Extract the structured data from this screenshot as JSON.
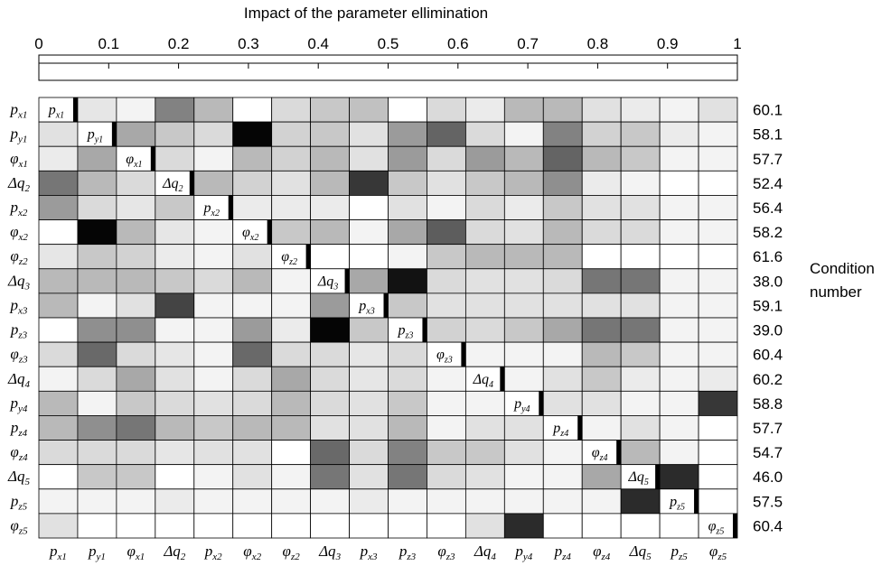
{
  "chart_data": {
    "type": "heatmap",
    "title": "Impact of the parameter ellimination",
    "scale_ticks": [
      "0",
      "0.1",
      "0.2",
      "0.3",
      "0.4",
      "0.5",
      "0.6",
      "0.7",
      "0.8",
      "0.9",
      "1"
    ],
    "scale_range": [
      0,
      1
    ],
    "labels": [
      {
        "sym": "p",
        "sub": "x1"
      },
      {
        "sym": "p",
        "sub": "y1"
      },
      {
        "sym": "φ",
        "sub": "x1"
      },
      {
        "sym": "Δq",
        "sub": "2"
      },
      {
        "sym": "p",
        "sub": "x2"
      },
      {
        "sym": "φ",
        "sub": "x2"
      },
      {
        "sym": "φ",
        "sub": "z2"
      },
      {
        "sym": "Δq",
        "sub": "3"
      },
      {
        "sym": "p",
        "sub": "x3"
      },
      {
        "sym": "p",
        "sub": "z3"
      },
      {
        "sym": "φ",
        "sub": "z3"
      },
      {
        "sym": "Δq",
        "sub": "4"
      },
      {
        "sym": "p",
        "sub": "y4"
      },
      {
        "sym": "p",
        "sub": "z4"
      },
      {
        "sym": "φ",
        "sub": "z4"
      },
      {
        "sym": "Δq",
        "sub": "5"
      },
      {
        "sym": "p",
        "sub": "z5"
      },
      {
        "sym": "φ",
        "sub": "z5"
      }
    ],
    "condition_label": [
      "Condition",
      "number"
    ],
    "condition_numbers": [
      "60.1",
      "58.1",
      "57.7",
      "52.4",
      "56.4",
      "58.2",
      "61.6",
      "38.0",
      "59.1",
      "39.0",
      "60.4",
      "60.2",
      "58.8",
      "57.7",
      "54.7",
      "46.0",
      "57.5",
      "60.4"
    ],
    "values": [
      [
        1.0,
        0.1,
        0.05,
        0.5,
        0.28,
        0.0,
        0.15,
        0.22,
        0.25,
        0.0,
        0.15,
        0.08,
        0.28,
        0.28,
        0.12,
        0.08,
        0.05,
        0.12
      ],
      [
        0.12,
        1.0,
        0.35,
        0.22,
        0.15,
        1.0,
        0.18,
        0.22,
        0.12,
        0.4,
        0.62,
        0.15,
        0.05,
        0.5,
        0.18,
        0.22,
        0.08,
        0.05
      ],
      [
        0.08,
        0.35,
        1.0,
        0.15,
        0.05,
        0.28,
        0.18,
        0.28,
        0.12,
        0.4,
        0.15,
        0.4,
        0.28,
        0.62,
        0.28,
        0.22,
        0.05,
        0.05
      ],
      [
        0.55,
        0.28,
        0.15,
        1.0,
        0.28,
        0.18,
        0.12,
        0.28,
        0.8,
        0.22,
        0.12,
        0.22,
        0.28,
        0.45,
        0.08,
        0.05,
        0.0,
        0.0
      ],
      [
        0.4,
        0.15,
        0.1,
        0.22,
        1.0,
        0.08,
        0.08,
        0.08,
        0.0,
        0.12,
        0.05,
        0.15,
        0.08,
        0.22,
        0.12,
        0.12,
        0.05,
        0.05
      ],
      [
        0.0,
        1.0,
        0.28,
        0.1,
        0.05,
        1.0,
        0.22,
        0.28,
        0.05,
        0.35,
        0.65,
        0.15,
        0.12,
        0.28,
        0.15,
        0.15,
        0.05,
        0.05
      ],
      [
        0.1,
        0.22,
        0.18,
        0.08,
        0.05,
        0.12,
        1.0,
        0.0,
        0.0,
        0.05,
        0.22,
        0.28,
        0.28,
        0.28,
        0.0,
        0.0,
        0.0,
        0.0
      ],
      [
        0.28,
        0.28,
        0.28,
        0.22,
        0.15,
        0.28,
        0.05,
        1.0,
        0.35,
        0.95,
        0.15,
        0.12,
        0.12,
        0.15,
        0.55,
        0.55,
        0.05,
        0.05
      ],
      [
        0.28,
        0.05,
        0.12,
        0.75,
        0.05,
        0.05,
        0.05,
        0.4,
        1.0,
        0.22,
        0.12,
        0.12,
        0.12,
        0.12,
        0.12,
        0.12,
        0.05,
        0.05
      ],
      [
        0.0,
        0.45,
        0.45,
        0.05,
        0.05,
        0.4,
        0.08,
        1.0,
        0.22,
        1.0,
        0.18,
        0.15,
        0.22,
        0.35,
        0.55,
        0.55,
        0.05,
        0.05
      ],
      [
        0.15,
        0.6,
        0.15,
        0.1,
        0.05,
        0.6,
        0.15,
        0.15,
        0.1,
        0.15,
        1.0,
        0.05,
        0.05,
        0.05,
        0.28,
        0.22,
        0.05,
        0.05
      ],
      [
        0.05,
        0.15,
        0.35,
        0.12,
        0.05,
        0.15,
        0.35,
        0.15,
        0.1,
        0.15,
        0.05,
        1.0,
        0.05,
        0.12,
        0.22,
        0.08,
        0.05,
        0.08
      ],
      [
        0.28,
        0.05,
        0.22,
        0.15,
        0.12,
        0.15,
        0.28,
        0.15,
        0.12,
        0.22,
        0.05,
        0.05,
        1.0,
        0.12,
        0.12,
        0.05,
        0.05,
        0.8
      ],
      [
        0.28,
        0.45,
        0.55,
        0.28,
        0.22,
        0.28,
        0.28,
        0.12,
        0.12,
        0.28,
        0.05,
        0.12,
        0.12,
        1.0,
        0.05,
        0.12,
        0.05,
        0.0
      ],
      [
        0.15,
        0.15,
        0.15,
        0.1,
        0.12,
        0.12,
        0.0,
        0.6,
        0.15,
        0.5,
        0.22,
        0.22,
        0.12,
        0.05,
        1.0,
        0.28,
        0.05,
        0.0
      ],
      [
        0.0,
        0.22,
        0.22,
        0.0,
        0.05,
        0.12,
        0.05,
        0.55,
        0.12,
        0.55,
        0.15,
        0.12,
        0.05,
        0.05,
        0.35,
        1.0,
        0.85,
        0.0
      ],
      [
        0.05,
        0.05,
        0.05,
        0.08,
        0.05,
        0.05,
        0.05,
        0.05,
        0.08,
        0.05,
        0.05,
        0.05,
        0.05,
        0.05,
        0.05,
        0.85,
        1.0,
        0.0
      ],
      [
        0.12,
        0.0,
        0.0,
        0.0,
        0.0,
        0.0,
        0.0,
        0.0,
        0.0,
        0.0,
        0.0,
        0.12,
        0.85,
        0.0,
        0.0,
        0.0,
        0.0,
        1.0
      ]
    ],
    "legend": "none",
    "grid": true
  }
}
